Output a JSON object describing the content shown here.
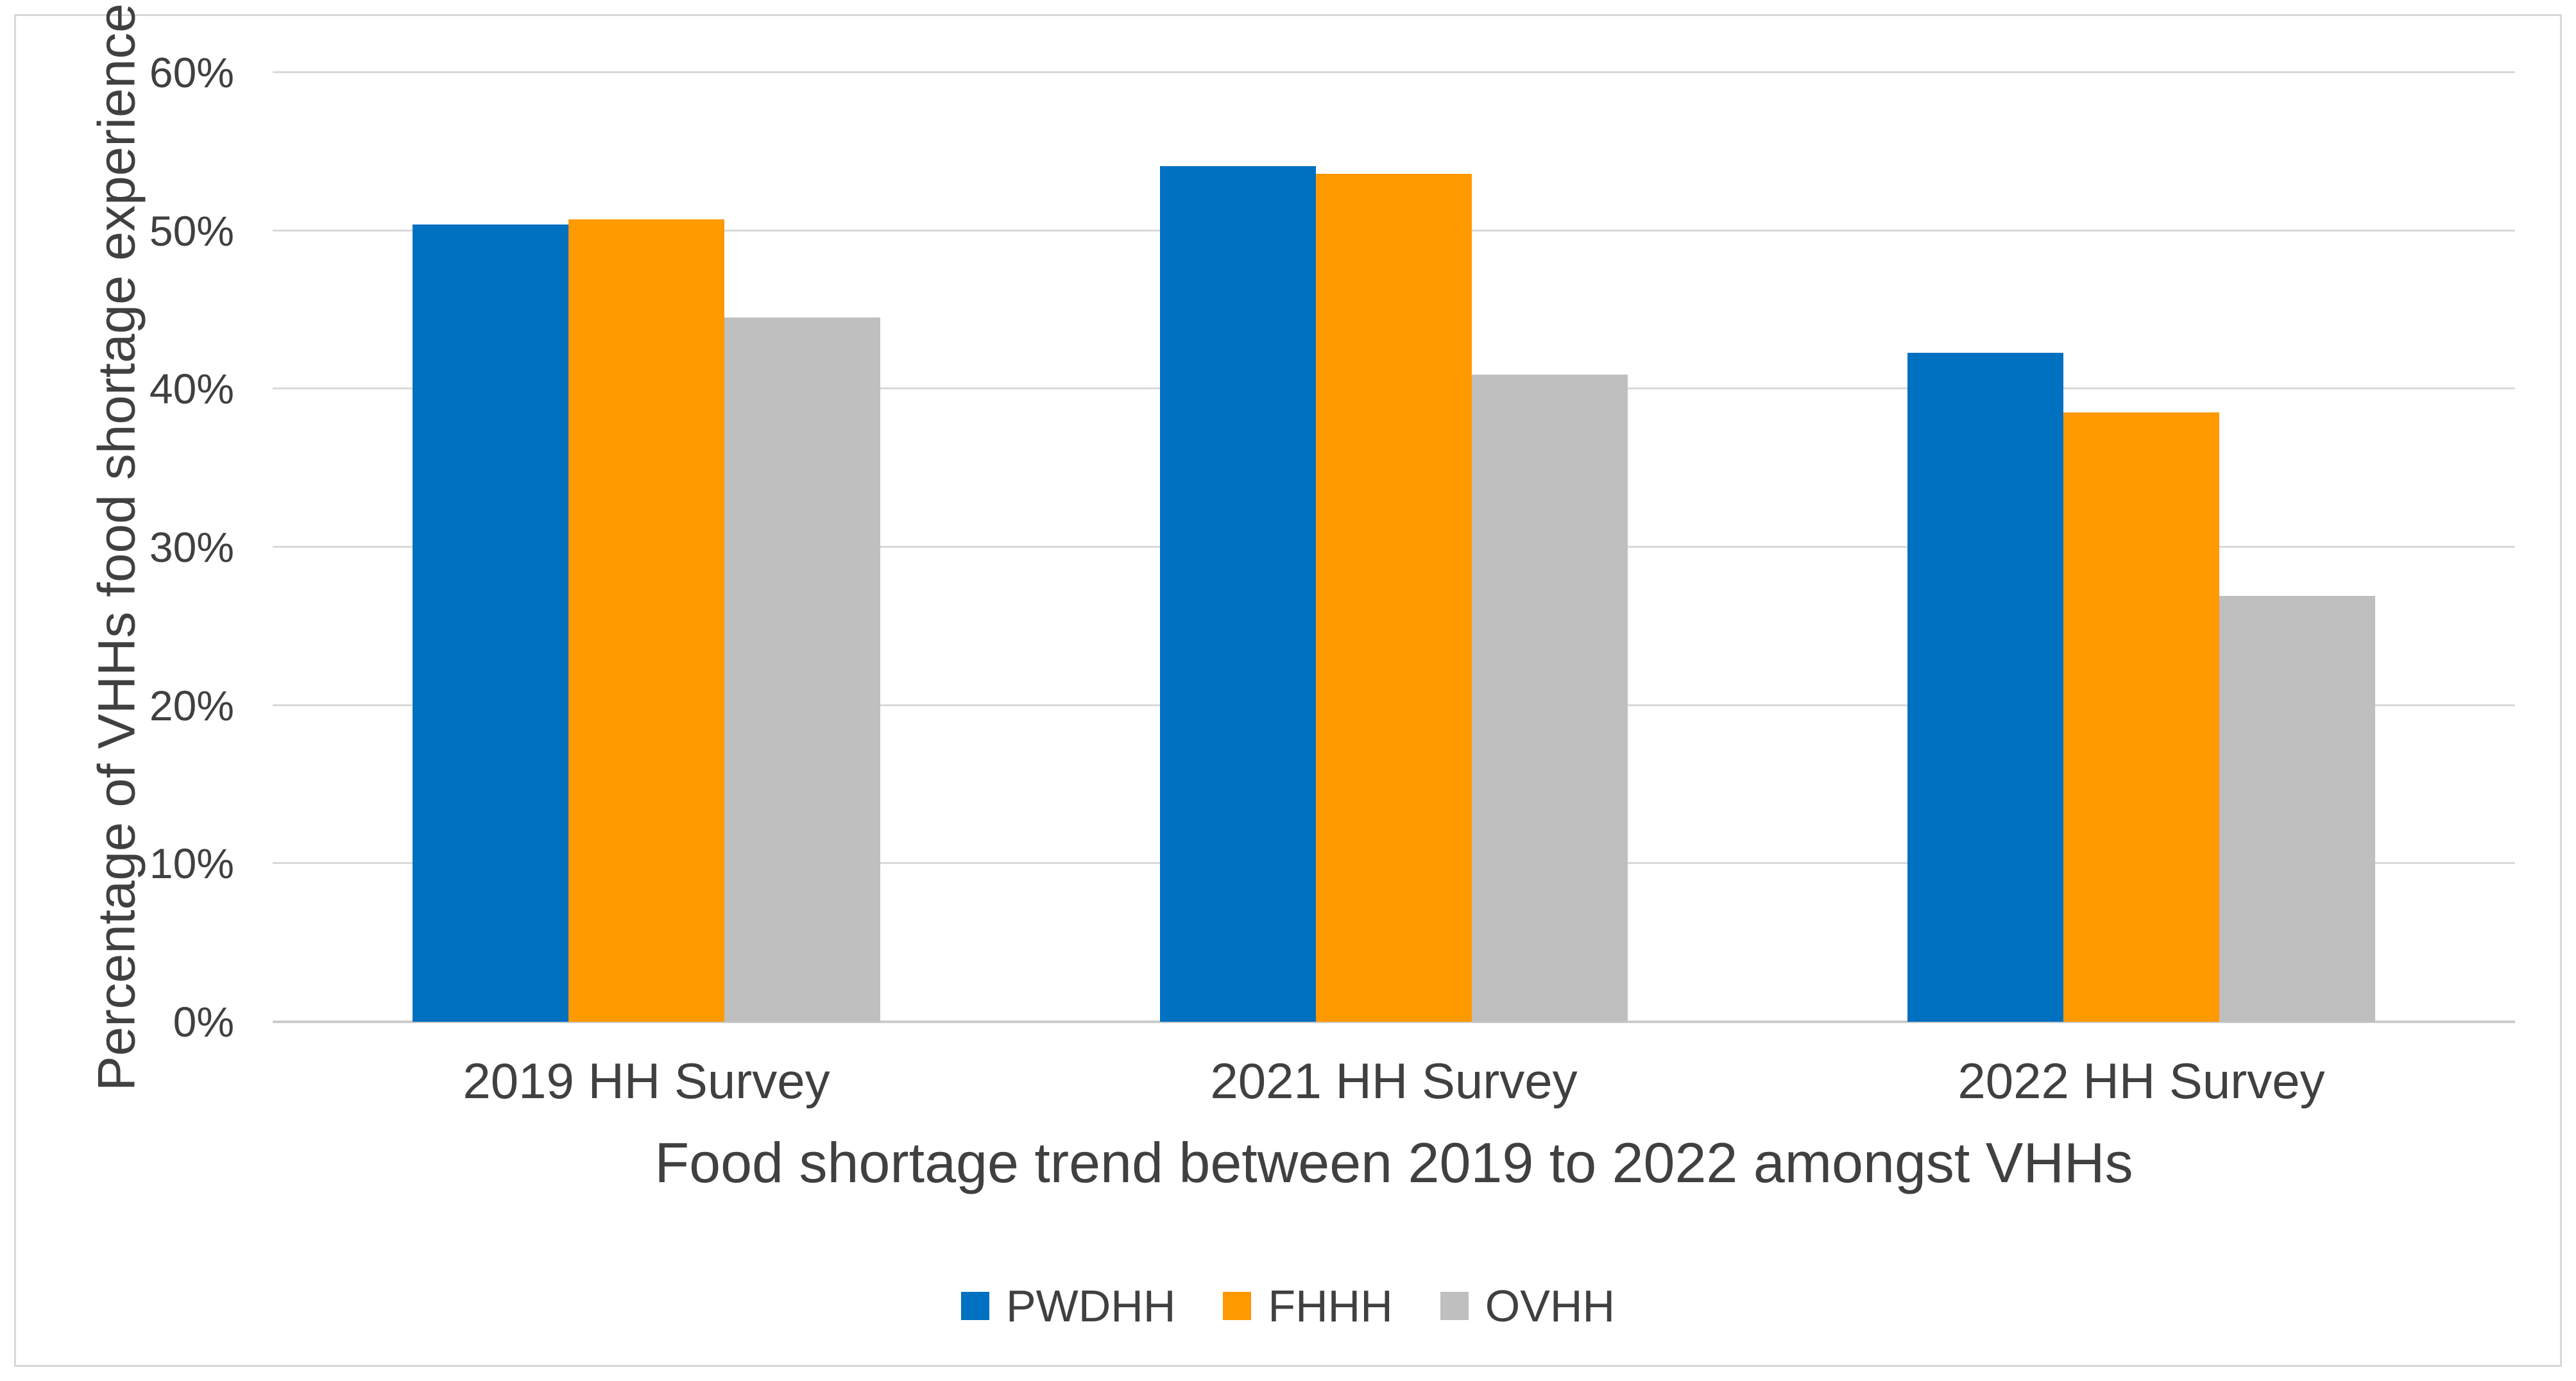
{
  "chart_data": {
    "type": "bar",
    "title": "",
    "xlabel": "Food shortage trend between 2019 to 2022 amongst VHHs",
    "ylabel": "Percentage of VHHs food shortage experience",
    "categories": [
      "2019 HH Survey",
      "2021 HH Survey",
      "2022 HH Survey"
    ],
    "series": [
      {
        "name": "PWDHH",
        "color": "#0070C0",
        "values": [
          50.4,
          54.1,
          42.3
        ]
      },
      {
        "name": "FHHH",
        "color": "#FF9900",
        "values": [
          50.7,
          53.6,
          38.5
        ]
      },
      {
        "name": "OVHH",
        "color": "#BFBFBF",
        "values": [
          44.5,
          40.9,
          26.9
        ]
      }
    ],
    "y_ticks": [
      "60%",
      "50%",
      "40%",
      "30%",
      "20%",
      "10%",
      "0%"
    ],
    "ylim": [
      0,
      60
    ],
    "y_unit": "%",
    "grid": "horizontal-only",
    "legend_position": "bottom"
  },
  "colors": {
    "background": "#FFFFFF",
    "frame_border": "#D8D8D8",
    "gridline": "#D9D9D9",
    "axis_line": "#CBCBCB",
    "text": "#404040"
  }
}
